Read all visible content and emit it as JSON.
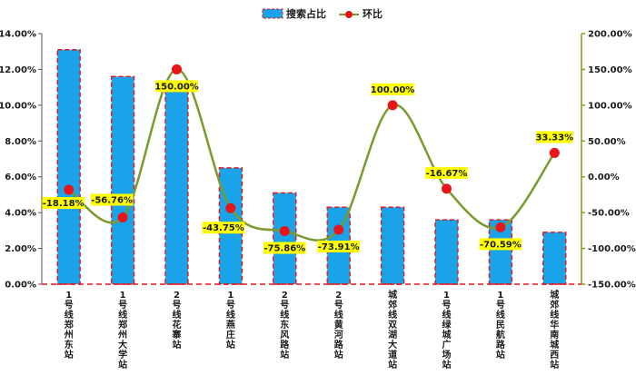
{
  "chart_data": {
    "type": "bar",
    "categories": [
      "1号线郑州东站",
      "1号线郑州大学站",
      "2号线花寨站",
      "1号线燕庄站",
      "2号线东风路站",
      "2号线黄河路站",
      "城郊线双湖大道站",
      "1号线绿城广场站",
      "1号线民航路站",
      "城郊线华南城西站"
    ],
    "series": [
      {
        "name": "搜索占比",
        "type": "bar",
        "axis": "left",
        "color": "#1aa3e8",
        "values": [
          13.1,
          11.6,
          11.2,
          6.5,
          5.1,
          4.3,
          4.3,
          3.6,
          3.6,
          2.9
        ]
      },
      {
        "name": "环比",
        "type": "line",
        "axis": "right",
        "color": "#7a9a2e",
        "marker_color": "#e8141a",
        "values": [
          -18.18,
          -56.76,
          150.0,
          -43.75,
          -75.86,
          -73.91,
          100.0,
          -16.67,
          -70.59,
          33.33
        ]
      }
    ],
    "data_labels": [
      "-18.18%",
      "-56.76%",
      "150.00%",
      "-43.75%",
      "-75.86%",
      "-73.91%",
      "100.00%",
      "-16.67%",
      "-70.59%",
      "33.33%"
    ],
    "left_axis": {
      "min": 0,
      "max": 14,
      "step": 2,
      "ticks": [
        "0.00%",
        "2.00%",
        "4.00%",
        "6.00%",
        "8.00%",
        "10.00%",
        "12.00%",
        "14.00%"
      ]
    },
    "right_axis": {
      "min": -150,
      "max": 200,
      "step": 50,
      "ticks": [
        "-150.00%",
        "-100.00%",
        "-50.00%",
        "0.00%",
        "50.00%",
        "100.00%",
        "150.00%",
        "200.00%"
      ]
    },
    "legend_position": "top-center",
    "grid": false,
    "colors": {
      "bar_fill": "#1aa3e8",
      "bar_border": "#e8141a",
      "line": "#7a9a2e",
      "marker": "#e8141a",
      "label_bg": "#ffff00",
      "axis_right": "#8a9a1a"
    }
  }
}
